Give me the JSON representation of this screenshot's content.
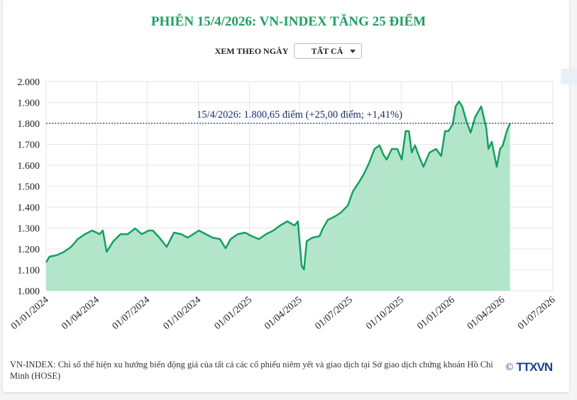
{
  "title": "PHIÊN 15/4/2026: VN-INDEX TĂNG 25 ĐIỂM",
  "filter": {
    "label": "XEM THEO NGÀY",
    "selected": "TẤT CẢ"
  },
  "note": "VN-INDEX: Chỉ số thể hiện xu hướng biến động giá của tất cả các cổ phiếu niêm yết và giao dịch tại Sở giao dịch chứng khoán Hồ Chí Minh (HOSE)",
  "logo": {
    "copyright": "©",
    "text": "TTXVN"
  },
  "colors": {
    "title": "#1f9d62",
    "line": "#13a05f",
    "fill": "#b3e5cb",
    "reference": "#1b2a6b"
  },
  "chart_data": {
    "type": "area",
    "title": "",
    "xlabel": "",
    "ylabel": "",
    "ylim": [
      1000,
      2000
    ],
    "xlim": [
      "2024-01-01",
      "2026-07-01"
    ],
    "yticks": [
      "1.000",
      "1.100",
      "1.200",
      "1.300",
      "1.400",
      "1.500",
      "1.600",
      "1.700",
      "1.800",
      "1.900",
      "2.000"
    ],
    "xticks": [
      "01/01/2024",
      "01/04/2024",
      "01/07/2024",
      "01/10/2024",
      "01/01/2025",
      "01/04/2025",
      "01/07/2025",
      "01/10/2025",
      "01/01/2026",
      "01/04/2026",
      "01/07/2026"
    ],
    "grid": true,
    "reference_line": {
      "value": 1800.65,
      "label": "15/4/2026: 1.800,65 điểm (+25,00 điểm; +1,41%)"
    },
    "series": [
      {
        "points": [
          [
            "2024-01-01",
            1136
          ],
          [
            "2024-01-07",
            1163
          ],
          [
            "2024-01-20",
            1170
          ],
          [
            "2024-02-02",
            1186
          ],
          [
            "2024-02-15",
            1210
          ],
          [
            "2024-02-27",
            1247
          ],
          [
            "2024-03-11",
            1271
          ],
          [
            "2024-03-24",
            1288
          ],
          [
            "2024-04-06",
            1271
          ],
          [
            "2024-04-12",
            1288
          ],
          [
            "2024-04-19",
            1186
          ],
          [
            "2024-05-01",
            1237
          ],
          [
            "2024-05-14",
            1271
          ],
          [
            "2024-05-27",
            1271
          ],
          [
            "2024-06-09",
            1298
          ],
          [
            "2024-06-21",
            1271
          ],
          [
            "2024-07-04",
            1288
          ],
          [
            "2024-07-11",
            1288
          ],
          [
            "2024-07-23",
            1254
          ],
          [
            "2024-08-05",
            1210
          ],
          [
            "2024-08-18",
            1278
          ],
          [
            "2024-08-31",
            1271
          ],
          [
            "2024-09-12",
            1254
          ],
          [
            "2024-10-02",
            1288
          ],
          [
            "2024-10-14",
            1271
          ],
          [
            "2024-10-27",
            1254
          ],
          [
            "2024-11-09",
            1247
          ],
          [
            "2024-11-19",
            1203
          ],
          [
            "2024-11-28",
            1247
          ],
          [
            "2024-12-11",
            1271
          ],
          [
            "2024-12-24",
            1278
          ],
          [
            "2025-01-05",
            1261
          ],
          [
            "2025-01-18",
            1247
          ],
          [
            "2025-01-31",
            1271
          ],
          [
            "2025-02-13",
            1288
          ],
          [
            "2025-02-25",
            1312
          ],
          [
            "2025-03-10",
            1332
          ],
          [
            "2025-03-23",
            1312
          ],
          [
            "2025-03-29",
            1332
          ],
          [
            "2025-04-05",
            1119
          ],
          [
            "2025-04-09",
            1102
          ],
          [
            "2025-04-14",
            1237
          ],
          [
            "2025-04-24",
            1254
          ],
          [
            "2025-05-07",
            1261
          ],
          [
            "2025-05-13",
            1298
          ],
          [
            "2025-05-22",
            1339
          ],
          [
            "2025-06-04",
            1356
          ],
          [
            "2025-06-14",
            1373
          ],
          [
            "2025-06-27",
            1407
          ],
          [
            "2025-07-06",
            1475
          ],
          [
            "2025-07-16",
            1515
          ],
          [
            "2025-07-26",
            1559
          ],
          [
            "2025-08-04",
            1610
          ],
          [
            "2025-08-14",
            1678
          ],
          [
            "2025-08-23",
            1695
          ],
          [
            "2025-08-30",
            1651
          ],
          [
            "2025-09-05",
            1627
          ],
          [
            "2025-09-14",
            1678
          ],
          [
            "2025-09-24",
            1678
          ],
          [
            "2025-10-02",
            1627
          ],
          [
            "2025-10-09",
            1763
          ],
          [
            "2025-10-15",
            1763
          ],
          [
            "2025-10-20",
            1661
          ],
          [
            "2025-10-26",
            1695
          ],
          [
            "2025-11-02",
            1644
          ],
          [
            "2025-11-10",
            1593
          ],
          [
            "2025-11-21",
            1661
          ],
          [
            "2025-12-03",
            1678
          ],
          [
            "2025-12-12",
            1644
          ],
          [
            "2025-12-19",
            1763
          ],
          [
            "2025-12-25",
            1763
          ],
          [
            "2026-01-02",
            1797
          ],
          [
            "2026-01-07",
            1881
          ],
          [
            "2026-01-13",
            1905
          ],
          [
            "2026-01-19",
            1880
          ],
          [
            "2026-01-26",
            1814
          ],
          [
            "2026-02-03",
            1756
          ],
          [
            "2026-02-11",
            1830
          ],
          [
            "2026-02-22",
            1881
          ],
          [
            "2026-03-03",
            1780
          ],
          [
            "2026-03-07",
            1678
          ],
          [
            "2026-03-13",
            1712
          ],
          [
            "2026-03-22",
            1593
          ],
          [
            "2026-03-28",
            1678
          ],
          [
            "2026-04-02",
            1695
          ],
          [
            "2026-04-09",
            1763
          ],
          [
            "2026-04-15",
            1800.65
          ]
        ]
      }
    ]
  }
}
